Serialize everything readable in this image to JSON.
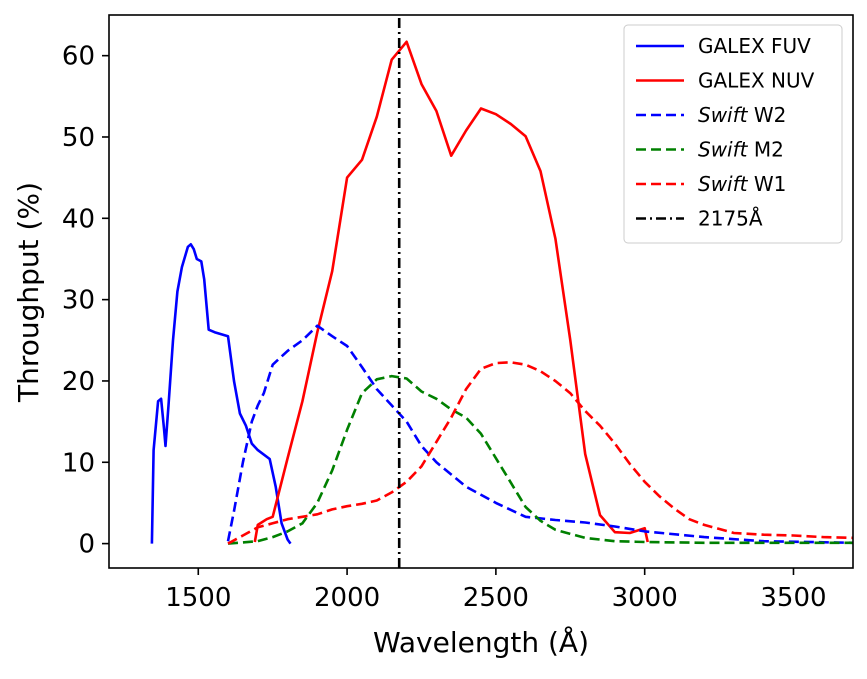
{
  "chart_data": {
    "type": "line",
    "title": "",
    "xlabel": "Wavelength (Å)",
    "ylabel": "Throughput (%)",
    "xlim": [
      1200,
      3700
    ],
    "ylim": [
      -3,
      65
    ],
    "x_ticks": [
      1500,
      2000,
      2500,
      3000,
      3500
    ],
    "x_tick_labels": [
      "1500",
      "2000",
      "2500",
      "3000",
      "3500"
    ],
    "y_ticks": [
      0,
      10,
      20,
      30,
      40,
      50,
      60
    ],
    "y_tick_labels": [
      "0",
      "10",
      "20",
      "30",
      "40",
      "50",
      "60"
    ],
    "grid": false,
    "legend_position": "top-right",
    "series": [
      {
        "name": "GALEX FUV",
        "label_italic": "",
        "label_rest": "GALEX FUV",
        "color": "#0000ff",
        "linestyle": "solid",
        "points": [
          [
            1344,
            0
          ],
          [
            1350,
            11.5
          ],
          [
            1365,
            17.5
          ],
          [
            1375,
            17.8
          ],
          [
            1385,
            14
          ],
          [
            1390,
            12
          ],
          [
            1400,
            17
          ],
          [
            1415,
            25
          ],
          [
            1430,
            31
          ],
          [
            1445,
            34
          ],
          [
            1465,
            36.5
          ],
          [
            1475,
            36.8
          ],
          [
            1485,
            36.2
          ],
          [
            1495,
            35
          ],
          [
            1510,
            34.7
          ],
          [
            1520,
            32.5
          ],
          [
            1535,
            26.3
          ],
          [
            1555,
            26
          ],
          [
            1600,
            25.5
          ],
          [
            1620,
            20
          ],
          [
            1640,
            16
          ],
          [
            1660,
            14.5
          ],
          [
            1680,
            12.3
          ],
          [
            1700,
            11.5
          ],
          [
            1740,
            10.4
          ],
          [
            1760,
            7
          ],
          [
            1780,
            2.5
          ],
          [
            1800,
            0.5
          ],
          [
            1810,
            0
          ]
        ]
      },
      {
        "name": "GALEX NUV",
        "label_italic": "",
        "label_rest": "GALEX NUV",
        "color": "#ff0000",
        "linestyle": "solid",
        "points": [
          [
            1690,
            0.2
          ],
          [
            1700,
            2.3
          ],
          [
            1730,
            3
          ],
          [
            1750,
            3.3
          ],
          [
            1800,
            10.5
          ],
          [
            1850,
            17.5
          ],
          [
            1900,
            26
          ],
          [
            1950,
            33.5
          ],
          [
            2000,
            45
          ],
          [
            2050,
            47.2
          ],
          [
            2100,
            52.5
          ],
          [
            2150,
            59.5
          ],
          [
            2200,
            61.7
          ],
          [
            2250,
            56.5
          ],
          [
            2300,
            53.2
          ],
          [
            2350,
            47.7
          ],
          [
            2400,
            50.8
          ],
          [
            2450,
            53.5
          ],
          [
            2500,
            52.8
          ],
          [
            2550,
            51.6
          ],
          [
            2600,
            50.1
          ],
          [
            2650,
            45.8
          ],
          [
            2700,
            37.5
          ],
          [
            2750,
            25
          ],
          [
            2800,
            11
          ],
          [
            2850,
            3.5
          ],
          [
            2900,
            1.4
          ],
          [
            2950,
            1.3
          ],
          [
            3000,
            1.9
          ],
          [
            3010,
            0.2
          ]
        ]
      },
      {
        "name": "Swift W2",
        "label_italic": "Swift",
        "label_rest": " W2",
        "color": "#0000ff",
        "linestyle": "dashed",
        "points": [
          [
            1600,
            0.3
          ],
          [
            1620,
            4
          ],
          [
            1650,
            10
          ],
          [
            1680,
            15
          ],
          [
            1700,
            17
          ],
          [
            1720,
            18.5
          ],
          [
            1750,
            22
          ],
          [
            1800,
            23.7
          ],
          [
            1850,
            25
          ],
          [
            1900,
            26.8
          ],
          [
            1950,
            25.5
          ],
          [
            2000,
            24.3
          ],
          [
            2050,
            21.7
          ],
          [
            2100,
            19
          ],
          [
            2150,
            17
          ],
          [
            2200,
            15
          ],
          [
            2250,
            12
          ],
          [
            2300,
            10
          ],
          [
            2400,
            7
          ],
          [
            2500,
            5
          ],
          [
            2600,
            3.3
          ],
          [
            2700,
            2.9
          ],
          [
            2800,
            2.6
          ],
          [
            2900,
            2.1
          ],
          [
            3000,
            1.5
          ],
          [
            3200,
            0.8
          ],
          [
            3400,
            0.3
          ],
          [
            3700,
            0.1
          ]
        ]
      },
      {
        "name": "Swift M2",
        "label_italic": "Swift",
        "label_rest": " M2",
        "color": "#008000",
        "linestyle": "dashed",
        "points": [
          [
            1600,
            0
          ],
          [
            1700,
            0.3
          ],
          [
            1750,
            0.8
          ],
          [
            1800,
            1.5
          ],
          [
            1850,
            2.5
          ],
          [
            1900,
            5
          ],
          [
            1950,
            9
          ],
          [
            2000,
            14
          ],
          [
            2050,
            18.5
          ],
          [
            2100,
            20.2
          ],
          [
            2150,
            20.6
          ],
          [
            2200,
            20.3
          ],
          [
            2250,
            18.7
          ],
          [
            2300,
            17.8
          ],
          [
            2350,
            16.5
          ],
          [
            2400,
            15.5
          ],
          [
            2450,
            13.5
          ],
          [
            2500,
            10.5
          ],
          [
            2550,
            7.5
          ],
          [
            2600,
            4.5
          ],
          [
            2650,
            2.8
          ],
          [
            2700,
            1.7
          ],
          [
            2800,
            0.7
          ],
          [
            2900,
            0.3
          ],
          [
            3000,
            0.2
          ],
          [
            3200,
            0.1
          ],
          [
            3700,
            0.1
          ]
        ]
      },
      {
        "name": "Swift W1",
        "label_italic": "Swift",
        "label_rest": " W1",
        "color": "#ff0000",
        "linestyle": "dashed",
        "points": [
          [
            1600,
            0
          ],
          [
            1650,
            1
          ],
          [
            1700,
            2
          ],
          [
            1750,
            2.5
          ],
          [
            1800,
            3
          ],
          [
            1850,
            3.3
          ],
          [
            1900,
            3.6
          ],
          [
            1950,
            4.2
          ],
          [
            2000,
            4.6
          ],
          [
            2050,
            4.9
          ],
          [
            2100,
            5.3
          ],
          [
            2150,
            6.3
          ],
          [
            2200,
            7.6
          ],
          [
            2250,
            9.5
          ],
          [
            2300,
            12.5
          ],
          [
            2350,
            15.5
          ],
          [
            2400,
            19
          ],
          [
            2450,
            21.5
          ],
          [
            2500,
            22.2
          ],
          [
            2550,
            22.3
          ],
          [
            2600,
            22
          ],
          [
            2650,
            21.2
          ],
          [
            2700,
            20
          ],
          [
            2750,
            18.5
          ],
          [
            2800,
            16.3
          ],
          [
            2850,
            14.5
          ],
          [
            2900,
            12.3
          ],
          [
            2950,
            9.8
          ],
          [
            3000,
            7.6
          ],
          [
            3050,
            5.8
          ],
          [
            3100,
            4.3
          ],
          [
            3150,
            3
          ],
          [
            3200,
            2.3
          ],
          [
            3300,
            1.3
          ],
          [
            3400,
            1.1
          ],
          [
            3500,
            1
          ],
          [
            3600,
            0.8
          ],
          [
            3700,
            0.7
          ]
        ]
      },
      {
        "name": "2175Å",
        "label_italic": "",
        "label_rest": "2175Å",
        "color": "#000000",
        "linestyle": "dashdot",
        "vertical_line_x": 2175,
        "points": [
          [
            2175,
            -3
          ],
          [
            2175,
            65
          ]
        ]
      }
    ]
  }
}
